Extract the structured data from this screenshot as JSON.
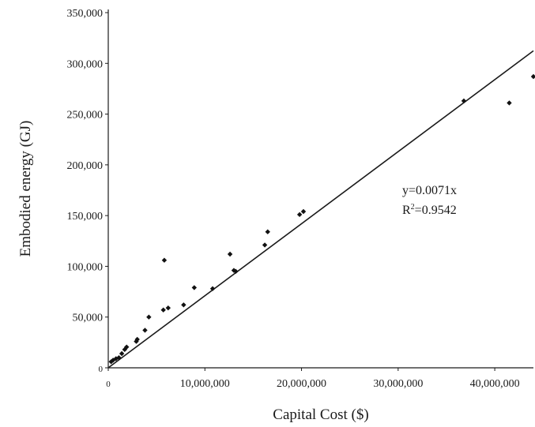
{
  "chart_data": {
    "type": "scatter",
    "xlabel": "Capital Cost ($)",
    "ylabel": "Embodied energy (GJ)",
    "xlim": [
      0,
      44000000
    ],
    "ylim": [
      0,
      350000
    ],
    "x_ticks": [
      {
        "value": 0,
        "label": "0"
      },
      {
        "value": 10000000,
        "label": "10,000,000"
      },
      {
        "value": 20000000,
        "label": "20,000,000"
      },
      {
        "value": 30000000,
        "label": "30,000,000"
      },
      {
        "value": 40000000,
        "label": "40,000,000"
      }
    ],
    "y_ticks": [
      {
        "value": 0,
        "label": "0"
      },
      {
        "value": 50000,
        "label": "50,000"
      },
      {
        "value": 100000,
        "label": "100,000"
      },
      {
        "value": 150000,
        "label": "150,000"
      },
      {
        "value": 200000,
        "label": "200,000"
      },
      {
        "value": 250000,
        "label": "250,000"
      },
      {
        "value": 300000,
        "label": "300,000"
      },
      {
        "value": 350000,
        "label": "350,000"
      }
    ],
    "grid": false,
    "legend": "none",
    "points": [
      {
        "x": 300000,
        "y": 6000
      },
      {
        "x": 500000,
        "y": 7500
      },
      {
        "x": 800000,
        "y": 9000
      },
      {
        "x": 1100000,
        "y": 10000
      },
      {
        "x": 1400000,
        "y": 14000
      },
      {
        "x": 1700000,
        "y": 18000
      },
      {
        "x": 1900000,
        "y": 20500
      },
      {
        "x": 2900000,
        "y": 26000
      },
      {
        "x": 3000000,
        "y": 28000
      },
      {
        "x": 3800000,
        "y": 37000
      },
      {
        "x": 4200000,
        "y": 50000
      },
      {
        "x": 5700000,
        "y": 57000
      },
      {
        "x": 5800000,
        "y": 106000
      },
      {
        "x": 6200000,
        "y": 59000
      },
      {
        "x": 7800000,
        "y": 62000
      },
      {
        "x": 8900000,
        "y": 79000
      },
      {
        "x": 10800000,
        "y": 78000
      },
      {
        "x": 12600000,
        "y": 112000
      },
      {
        "x": 13000000,
        "y": 96000
      },
      {
        "x": 13200000,
        "y": 95000
      },
      {
        "x": 16200000,
        "y": 121000
      },
      {
        "x": 16500000,
        "y": 134000
      },
      {
        "x": 19800000,
        "y": 151000
      },
      {
        "x": 20200000,
        "y": 154000
      },
      {
        "x": 36800000,
        "y": 263000
      },
      {
        "x": 41500000,
        "y": 261000
      },
      {
        "x": 44000000,
        "y": 287000
      }
    ],
    "trendline": {
      "slope": 0.0071,
      "intercept": 0
    },
    "annotations": {
      "equation": "y=0.0071x",
      "r_squared_prefix": "R",
      "r_squared_sup": "2",
      "r_squared_value": "=0.9542"
    },
    "colors": {
      "points": "#111111",
      "line": "#1a1a1a"
    }
  }
}
